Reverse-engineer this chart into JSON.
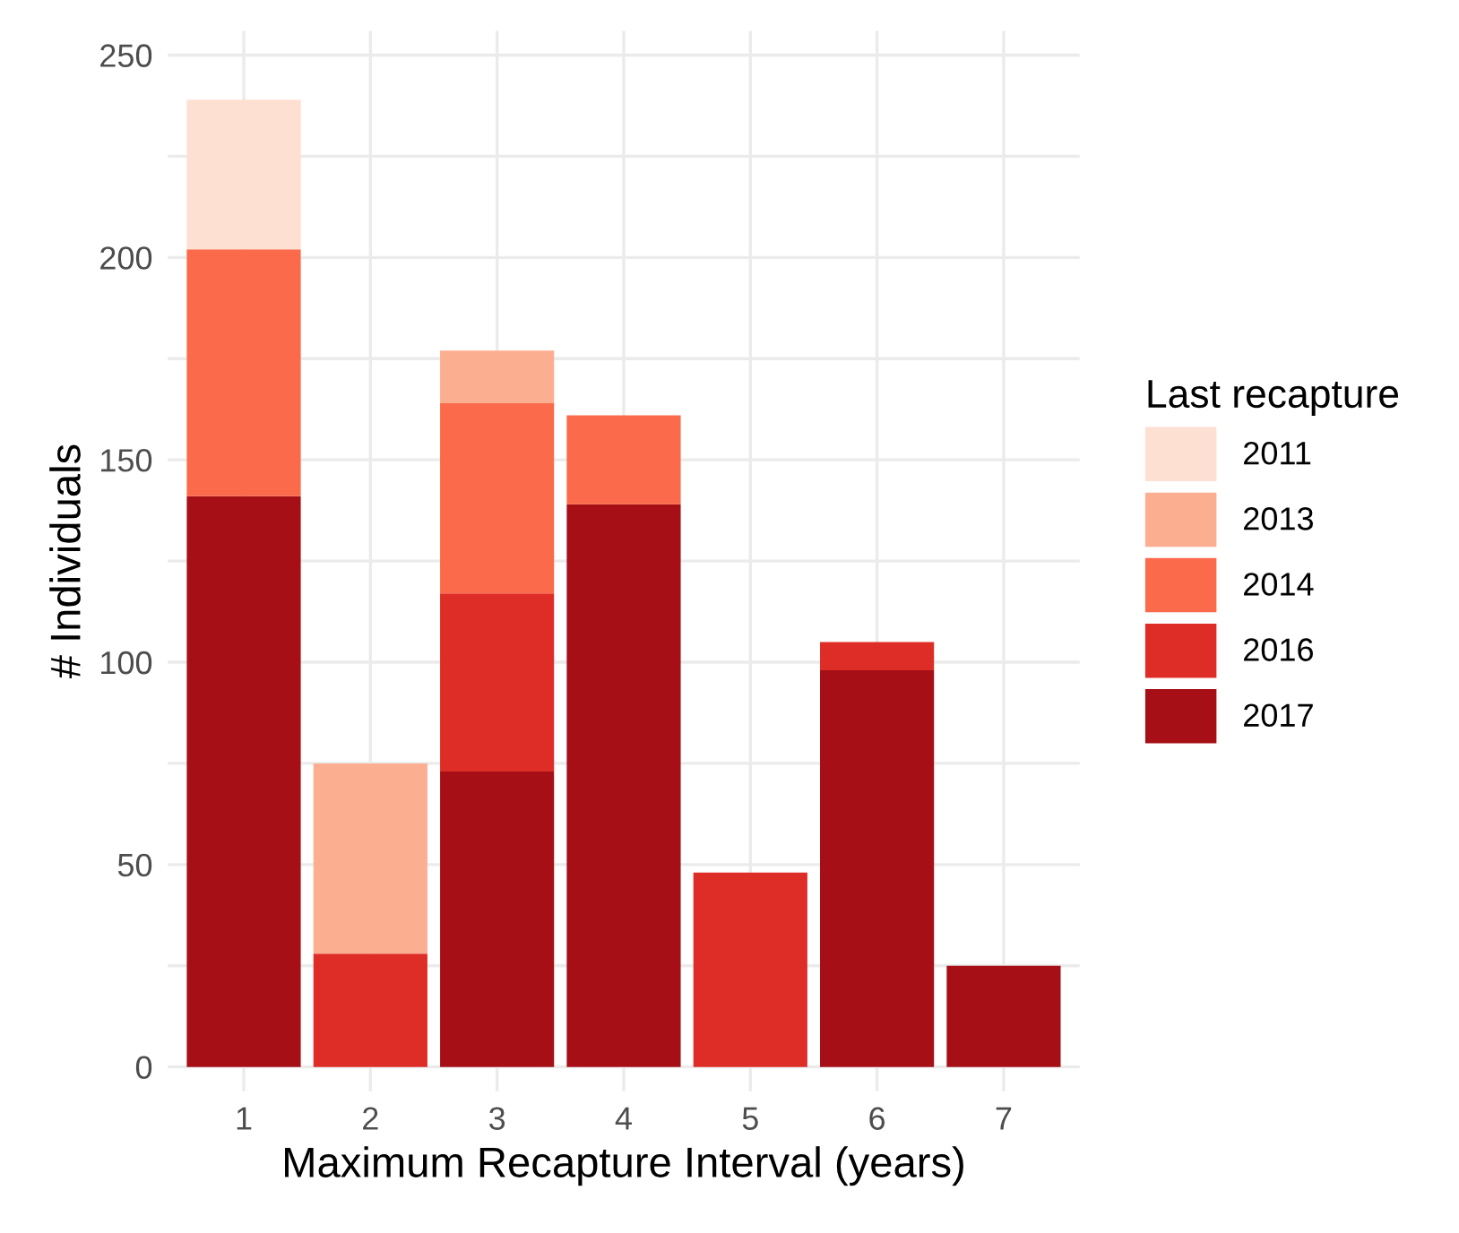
{
  "chart_data": {
    "type": "bar",
    "stacked": true,
    "xlabel": "Maximum Recapture Interval (years)",
    "ylabel": "# Individuals",
    "legend_title": "Last recapture",
    "legend": "right",
    "grid": true,
    "categories": [
      "1",
      "2",
      "3",
      "4",
      "5",
      "6",
      "7"
    ],
    "ylim": [
      -6,
      256
    ],
    "yticks": [
      0,
      {
        "value": 25,
        "label": null
      },
      50,
      {
        "value": 75,
        "label": null
      },
      100,
      {
        "value": 125,
        "label": null
      },
      150,
      {
        "value": 175,
        "label": null
      },
      200,
      {
        "value": 225,
        "label": null
      },
      250
    ],
    "series": [
      {
        "name": "2017",
        "color": "#a50f15",
        "values": [
          141,
          0,
          73,
          139,
          0,
          98,
          25
        ]
      },
      {
        "name": "2016",
        "color": "#de2d26",
        "values": [
          0,
          28,
          44,
          0,
          48,
          7,
          0
        ]
      },
      {
        "name": "2014",
        "color": "#fb6a4a",
        "values": [
          61,
          0,
          47,
          22,
          0,
          0,
          0
        ]
      },
      {
        "name": "2013",
        "color": "#fcae91",
        "values": [
          0,
          47,
          13,
          0,
          0,
          0,
          0
        ]
      },
      {
        "name": "2011",
        "color": "#fee0d2",
        "values": [
          37,
          0,
          0,
          0,
          0,
          0,
          0
        ]
      }
    ]
  }
}
